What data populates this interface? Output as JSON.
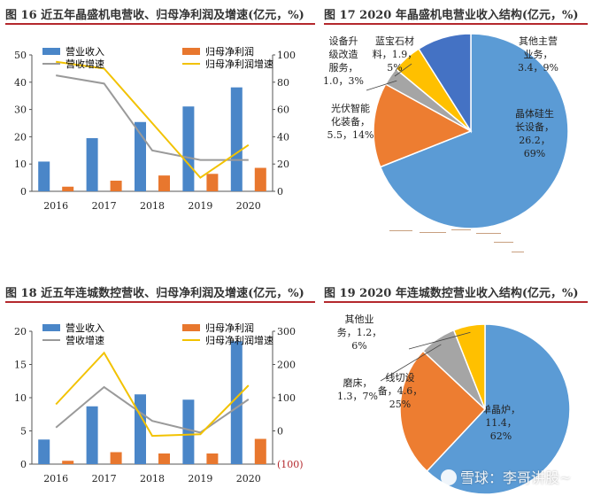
{
  "panels": [
    {
      "title": "图 16 近五年晶盛机电营收、归母净利润及增速(亿元，%)",
      "legend": {
        "revenue": "营业收入",
        "profit": "归母净利润",
        "rev_growth": "营收增速",
        "profit_growth": "归母净利润增速"
      }
    },
    {
      "title": "图 17 2020 年晶盛机电营业收入结构(亿元，%)"
    },
    {
      "title": "图 18 近五年连城数控营收、归母净利润及增速(亿元，%)",
      "legend": {
        "revenue": "营业收入",
        "profit": "归母净利润",
        "rev_growth": "营收增速",
        "profit_growth": "归母净利润增速"
      }
    },
    {
      "title": "图 19 2020 年连城数控营业收入结构(亿元，%)"
    }
  ],
  "watermark": "雪球：李哥讲股~",
  "colors": {
    "revenue": "#4a86c8",
    "profit": "#e8772e",
    "rev_growth": "#9a9a9a",
    "profit_growth": "#f2c200",
    "title_rule": "#b4282d"
  },
  "chart_data": [
    {
      "type": "bar",
      "categories": [
        "2016",
        "2017",
        "2018",
        "2019",
        "2020"
      ],
      "series": [
        {
          "name": "营业收入",
          "axis": "left",
          "kind": "bar",
          "values": [
            10.9,
            19.5,
            25.4,
            31.1,
            38.1
          ]
        },
        {
          "name": "归母净利润",
          "axis": "left",
          "kind": "bar",
          "values": [
            1.7,
            3.9,
            5.8,
            6.4,
            8.6
          ]
        },
        {
          "name": "营收增速",
          "axis": "right",
          "kind": "line",
          "values": [
            85,
            79,
            30,
            23,
            23
          ]
        },
        {
          "name": "归母净利润增速",
          "axis": "right",
          "kind": "line",
          "values": [
            95,
            90,
            50,
            10,
            34
          ]
        }
      ],
      "ylim": [
        0,
        50
      ],
      "yticks": [
        0,
        10,
        20,
        30,
        40,
        50
      ],
      "y2lim": [
        0,
        100
      ],
      "y2ticks": [
        0,
        20,
        40,
        60,
        80,
        100
      ],
      "legend_position": "top",
      "grid": false
    },
    {
      "type": "pie",
      "slices": [
        {
          "label": "晶体硅生长设备，26.2，69%",
          "lines": [
            "晶体硅生",
            "长设备，",
            "26.2，",
            "69%"
          ],
          "value": 26.2,
          "percent": 69,
          "color": "#5b9bd5"
        },
        {
          "label": "光伏智能化装备，5.5，14%",
          "lines": [
            "光伏智能",
            "化装备，",
            "5.5，14%"
          ],
          "value": 5.5,
          "percent": 14,
          "color": "#ed7d31"
        },
        {
          "label": "设备升级改造服务，1.0，3%",
          "lines": [
            "设备升",
            "级改造",
            "服务，",
            "1.0，3%"
          ],
          "value": 1.0,
          "percent": 3,
          "color": "#a5a5a5"
        },
        {
          "label": "蓝宝石材料，1.9，5%",
          "lines": [
            "蓝宝石材",
            "料，1.9，",
            "5%"
          ],
          "value": 1.9,
          "percent": 5,
          "color": "#ffc000"
        },
        {
          "label": "其他主营业务，3.4，9%",
          "lines": [
            "其他主营",
            "业务，",
            "3.4，9%"
          ],
          "value": 3.4,
          "percent": 9,
          "color": "#4472c4"
        }
      ]
    },
    {
      "type": "bar",
      "categories": [
        "2016",
        "2017",
        "2018",
        "2019",
        "2020"
      ],
      "series": [
        {
          "name": "营业收入",
          "axis": "left",
          "kind": "bar",
          "values": [
            3.7,
            8.7,
            10.5,
            9.7,
            18.5
          ]
        },
        {
          "name": "归母净利润",
          "axis": "left",
          "kind": "bar",
          "values": [
            0.5,
            1.8,
            1.6,
            1.6,
            3.8
          ]
        },
        {
          "name": "营收增速",
          "axis": "right",
          "kind": "line",
          "values": [
            10,
            132,
            30,
            -5,
            95
          ]
        },
        {
          "name": "归母净利润增速",
          "axis": "right",
          "kind": "line",
          "values": [
            80,
            235,
            -15,
            -10,
            137
          ]
        }
      ],
      "ylim": [
        0,
        20
      ],
      "yticks": [
        0,
        5,
        10,
        15,
        20
      ],
      "y2lim": [
        -100,
        300
      ],
      "y2ticks": [
        300,
        200,
        100,
        0,
        "(100)"
      ],
      "legend_position": "top",
      "grid": false
    },
    {
      "type": "pie",
      "slices": [
        {
          "label": "单晶炉，11.4，62%",
          "lines": [
            "单晶炉，",
            "11.4，",
            "62%"
          ],
          "value": 11.4,
          "percent": 62,
          "color": "#5b9bd5"
        },
        {
          "label": "线切设备，4.6，25%",
          "lines": [
            "线切设",
            "备，4.6，",
            "25%"
          ],
          "value": 4.6,
          "percent": 25,
          "color": "#ed7d31"
        },
        {
          "label": "磨床，1.3，7%",
          "lines": [
            "磨床，",
            "1.3，7%"
          ],
          "value": 1.3,
          "percent": 7,
          "color": "#a5a5a5"
        },
        {
          "label": "其他业务，1.2，6%",
          "lines": [
            "其他业",
            "务，1.2，",
            "6%"
          ],
          "value": 1.2,
          "percent": 6,
          "color": "#ffc000"
        }
      ]
    }
  ]
}
